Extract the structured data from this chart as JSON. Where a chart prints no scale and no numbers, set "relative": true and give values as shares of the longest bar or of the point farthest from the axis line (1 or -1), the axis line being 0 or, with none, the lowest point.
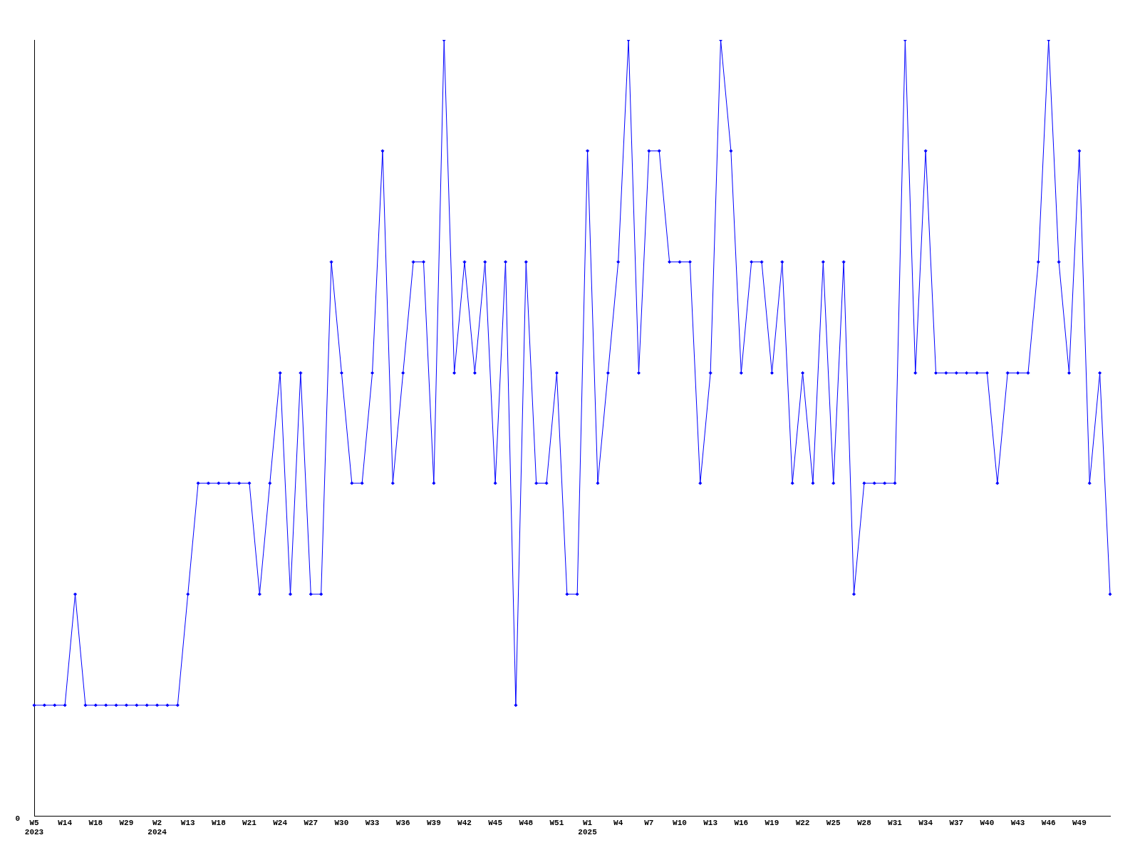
{
  "chart_data": {
    "type": "line",
    "relative": true,
    "color": "#0000ff",
    "marker": "diamond",
    "line_style": "solid",
    "grid": false,
    "legend": false,
    "annotations": [
      "0"
    ],
    "categories": [
      "W5\n2023",
      null,
      null,
      "W14",
      null,
      null,
      "W18",
      null,
      null,
      "W29",
      null,
      null,
      "W2\n2024",
      null,
      null,
      "W13",
      null,
      null,
      "W18",
      null,
      null,
      "W21",
      null,
      null,
      "W24",
      null,
      null,
      "W27",
      null,
      null,
      "W30",
      null,
      null,
      "W33",
      null,
      null,
      "W36",
      null,
      null,
      "W39",
      null,
      null,
      "W42",
      null,
      null,
      "W45",
      null,
      null,
      "W48",
      null,
      null,
      "W51",
      null,
      null,
      "W1\n2025",
      null,
      null,
      "W4",
      null,
      null,
      "W7",
      null,
      null,
      "W10",
      null,
      null,
      "W13",
      null,
      null,
      "W16",
      null,
      null,
      "W19",
      null,
      null,
      "W22",
      null,
      null,
      "W25",
      null,
      null,
      "W28",
      null,
      null,
      "W31",
      null,
      null,
      "W34",
      null,
      null,
      "W37",
      null,
      null,
      "W40",
      null,
      null,
      "W43",
      null,
      null,
      "W46",
      null,
      null,
      "W49",
      null,
      null,
      null
    ],
    "values": [
      0.143,
      0.143,
      0.143,
      0.143,
      0.286,
      0.143,
      0.143,
      0.143,
      0.143,
      0.143,
      0.143,
      0.143,
      0.143,
      0.143,
      0.143,
      0.286,
      0.429,
      0.429,
      0.429,
      0.429,
      0.429,
      0.429,
      0.286,
      0.429,
      0.571,
      0.286,
      0.571,
      0.286,
      0.286,
      0.714,
      0.571,
      0.429,
      0.429,
      0.571,
      0.857,
      0.429,
      0.571,
      0.714,
      0.714,
      0.429,
      1,
      0.571,
      0.714,
      0.571,
      0.714,
      0.429,
      0.714,
      0.143,
      0.714,
      0.429,
      0.429,
      0.571,
      0.286,
      0.286,
      0.857,
      0.429,
      0.571,
      0.714,
      1,
      0.571,
      0.857,
      0.857,
      0.714,
      0.714,
      0.714,
      0.429,
      0.571,
      1,
      0.857,
      0.571,
      0.714,
      0.714,
      0.571,
      0.714,
      0.429,
      0.571,
      0.429,
      0.714,
      0.429,
      0.714,
      0.286,
      0.429,
      0.429,
      0.429,
      0.429,
      1,
      0.571,
      0.857,
      0.571,
      0.571,
      0.571,
      0.571,
      0.571,
      0.571,
      0.429,
      0.571,
      0.571,
      0.571,
      0.714,
      1,
      0.714,
      0.571,
      0.857,
      0.429,
      0.571,
      0.286
    ]
  }
}
